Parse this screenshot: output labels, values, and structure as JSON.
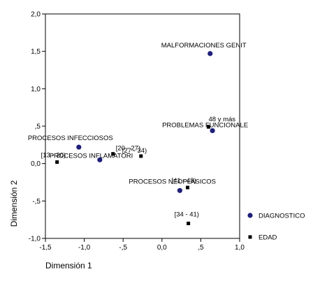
{
  "chart_data": {
    "type": "scatter",
    "xlabel": "Dimensión 1",
    "ylabel": "Dimensión 2",
    "xlim": [
      -1.5,
      1.0
    ],
    "ylim": [
      -1.0,
      2.0
    ],
    "x_ticks": [
      -1.5,
      -1.0,
      -0.5,
      0.0,
      0.5,
      1.0
    ],
    "x_tick_labels": [
      "-1,5",
      "-1,0",
      "-,5",
      "0,0",
      ",5",
      "1,0"
    ],
    "y_ticks": [
      -1.0,
      -0.5,
      0.0,
      0.5,
      1.0,
      1.5,
      2.0
    ],
    "y_tick_labels": [
      "-1,0",
      "-,5",
      "0,0",
      ",5",
      "1,0",
      "1,5",
      "2,0"
    ],
    "grid": false,
    "legend_position": "right",
    "series": [
      {
        "name": "DIAGNOSTICO",
        "marker": "circle",
        "color": "#1f1f7a",
        "points": [
          {
            "label": "MALFORMACIONES GENIT",
            "x": 0.62,
            "y": 1.47
          },
          {
            "label": "PROBLEMAS FUNCIONALE",
            "x": 0.65,
            "y": 0.44
          },
          {
            "label": "PROCESOS INFECCIOSOS",
            "x": -1.07,
            "y": 0.22
          },
          {
            "label": "PROCESOS INFLAMATORI",
            "x": -0.8,
            "y": 0.05
          },
          {
            "label": "PROCESOS NEOPLASICOS",
            "x": 0.23,
            "y": -0.36
          }
        ]
      },
      {
        "name": "EDAD",
        "marker": "square",
        "color": "#000000",
        "points": [
          {
            "label": "[13 - 20)",
            "x": -1.35,
            "y": 0.02
          },
          {
            "label": "[20 - 27)",
            "x": -0.63,
            "y": 0.13
          },
          {
            "label": "[27 - 34)",
            "x": -0.27,
            "y": 0.1
          },
          {
            "label": "48 y más",
            "x": 0.6,
            "y": 0.49
          },
          {
            "label": "[41 - 48)",
            "x": 0.33,
            "y": -0.32
          },
          {
            "label": "[34 - 41)",
            "x": 0.34,
            "y": -0.8
          }
        ]
      }
    ]
  }
}
